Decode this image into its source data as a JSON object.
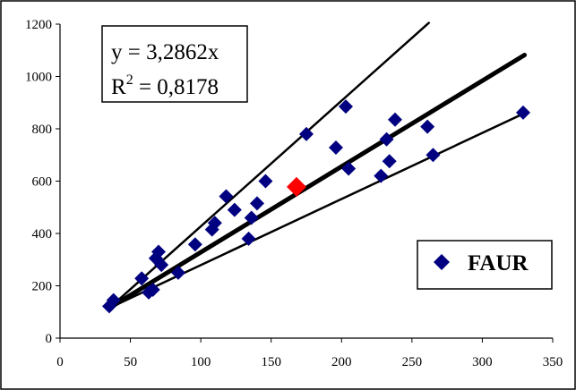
{
  "chart_data": {
    "type": "scatter",
    "xlim": [
      0,
      350
    ],
    "ylim": [
      0,
      1200
    ],
    "xticks": [
      0,
      50,
      100,
      150,
      200,
      250,
      300,
      350
    ],
    "yticks": [
      0,
      200,
      400,
      600,
      800,
      1000,
      1200
    ],
    "grid": false,
    "legend_position": "bottom-right",
    "equation": "y = 3,2862x",
    "r2_label": "R",
    "r2_exp": "2",
    "r2_value": " = 0,8178",
    "series": [
      {
        "name": "FAUR",
        "marker": "diamond",
        "color": "#000080",
        "points": [
          [
            35,
            122
          ],
          [
            38,
            145
          ],
          [
            58,
            228
          ],
          [
            63,
            175
          ],
          [
            66,
            185
          ],
          [
            68,
            305
          ],
          [
            70,
            330
          ],
          [
            72,
            280
          ],
          [
            84,
            250
          ],
          [
            96,
            358
          ],
          [
            108,
            415
          ],
          [
            110,
            440
          ],
          [
            118,
            542
          ],
          [
            124,
            490
          ],
          [
            134,
            380
          ],
          [
            136,
            460
          ],
          [
            140,
            515
          ],
          [
            146,
            600
          ],
          [
            175,
            780
          ],
          [
            196,
            728
          ],
          [
            203,
            885
          ],
          [
            205,
            648
          ],
          [
            228,
            620
          ],
          [
            232,
            760
          ],
          [
            234,
            676
          ],
          [
            238,
            835
          ],
          [
            261,
            808
          ],
          [
            265,
            700
          ],
          [
            329,
            862
          ]
        ]
      }
    ],
    "highlight_point": {
      "x": 168,
      "y": 578,
      "color": "#ff0000"
    },
    "lines": [
      {
        "name": "upper",
        "x": [
          35,
          262
        ],
        "y": [
          115,
          1205
        ],
        "width": 2.5
      },
      {
        "name": "trend",
        "x": [
          35,
          330
        ],
        "y": [
          115,
          1082
        ],
        "width": 5
      },
      {
        "name": "lower",
        "x": [
          35,
          330
        ],
        "y": [
          115,
          860
        ],
        "width": 2.5
      }
    ]
  }
}
